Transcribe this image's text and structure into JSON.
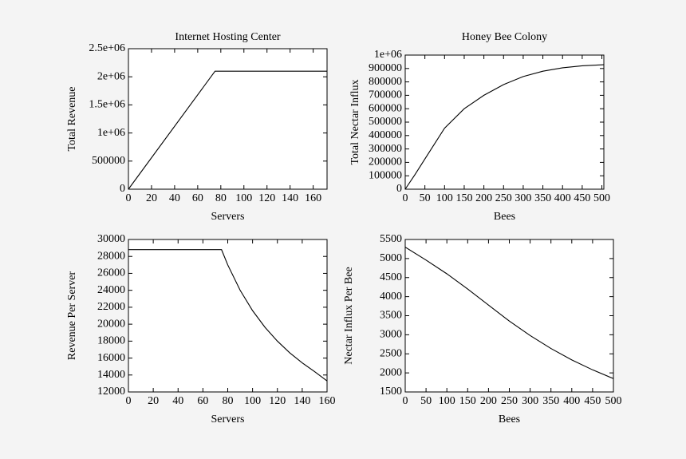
{
  "chart_data": [
    {
      "type": "line",
      "title": "Internet Hosting Center",
      "x_label": "Servers",
      "y_label": "Total Revenue",
      "color": "#000000",
      "x": [
        0,
        75,
        172
      ],
      "values": [
        0,
        2100000,
        2100000
      ],
      "xlim": [
        0,
        172
      ],
      "xticks": [
        0,
        20,
        40,
        60,
        80,
        100,
        120,
        140,
        160
      ],
      "ylim": [
        0,
        2500000
      ],
      "yticks": [
        0,
        500000,
        {
          "value": 1000000,
          "label": "1e+06"
        },
        {
          "value": 1500000,
          "label": "1.5e+06"
        },
        {
          "value": 2000000,
          "label": "2e+06"
        },
        {
          "value": 2500000,
          "label": "2.5e+06"
        }
      ]
    },
    {
      "type": "line",
      "title": "Honey Bee Colony",
      "x_label": "Bees",
      "y_label": "Total Nectar Influx",
      "color": "#000000",
      "x": [
        0,
        25,
        50,
        100,
        150,
        200,
        250,
        300,
        350,
        400,
        450,
        505
      ],
      "values": [
        0,
        110000,
        225000,
        455000,
        600000,
        700000,
        780000,
        840000,
        880000,
        905000,
        920000,
        928000
      ],
      "xlim": [
        0,
        505
      ],
      "xticks": [
        0,
        50,
        100,
        150,
        200,
        250,
        300,
        350,
        400,
        450,
        500
      ],
      "ylim": [
        0,
        1000000
      ],
      "yticks": [
        0,
        100000,
        200000,
        300000,
        400000,
        500000,
        600000,
        700000,
        800000,
        900000,
        {
          "value": 1000000,
          "label": "1e+06"
        }
      ]
    },
    {
      "type": "line",
      "x_label": "Servers",
      "y_label": "Revenue Per Server",
      "color": "#000000",
      "x": [
        0,
        75,
        80,
        90,
        100,
        110,
        120,
        130,
        140,
        150,
        160
      ],
      "values": [
        28800,
        28800,
        27000,
        24000,
        21600,
        19636,
        18000,
        16615,
        15429,
        14400,
        13300
      ],
      "xlim": [
        0,
        160
      ],
      "xticks": [
        0,
        20,
        40,
        60,
        80,
        100,
        120,
        140,
        160
      ],
      "ylim": [
        12000,
        30000
      ],
      "yticks": [
        12000,
        14000,
        16000,
        18000,
        20000,
        22000,
        24000,
        26000,
        28000,
        30000
      ]
    },
    {
      "type": "line",
      "x_label": "Bees",
      "y_label": "Nectar Influx Per Bee",
      "color": "#000000",
      "x": [
        0,
        50,
        100,
        150,
        200,
        250,
        300,
        350,
        400,
        450,
        500
      ],
      "values": [
        5300,
        4960,
        4600,
        4200,
        3780,
        3360,
        2980,
        2640,
        2340,
        2080,
        1850
      ],
      "xlim": [
        0,
        500
      ],
      "xticks": [
        0,
        50,
        100,
        150,
        200,
        250,
        300,
        350,
        400,
        450,
        500
      ],
      "ylim": [
        1500,
        5500
      ],
      "yticks": [
        1500,
        2000,
        2500,
        3000,
        3500,
        4000,
        4500,
        5000,
        5500
      ]
    }
  ]
}
